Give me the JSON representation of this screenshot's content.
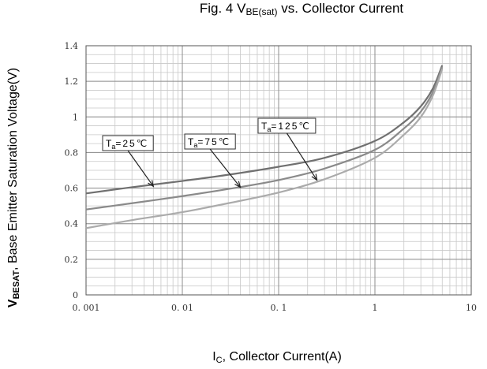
{
  "chart_data": {
    "type": "line",
    "title_main": "Fig. 4 V",
    "title_sub": "BE(sat)",
    "title_rest": " vs. Collector Current",
    "xlabel_main": "I",
    "xlabel_sub": "C",
    "xlabel_rest": ", Collector Current(A)",
    "ylabel_bold": "V",
    "ylabel_bold_sub": "BESAT",
    "ylabel_rest": ", Base Emitter Saturation Voltage(V)",
    "x_scale": "log",
    "xlim": [
      0.001,
      10
    ],
    "ylim": [
      0,
      1.4
    ],
    "x_ticks": [
      0.001,
      0.01,
      0.1,
      1,
      10
    ],
    "x_tick_labels": [
      "0. 001",
      "0. 01",
      "0. 1",
      "1",
      "10"
    ],
    "y_ticks": [
      0,
      0.2,
      0.4,
      0.6,
      0.8,
      1,
      1.2,
      1.4
    ],
    "y_tick_labels": [
      "0",
      "0.2",
      "0.4",
      "0.6",
      "0.8",
      "1",
      "1.2",
      "1.4"
    ],
    "grid": true,
    "series": [
      {
        "name": "Ta=25℃",
        "label_base": "T",
        "label_sub": "a",
        "label_rest": "=25℃",
        "color": "#707070",
        "x": [
          0.001,
          0.003,
          0.01,
          0.03,
          0.1,
          0.3,
          1,
          2,
          3,
          4,
          5
        ],
        "y": [
          0.57,
          0.605,
          0.64,
          0.675,
          0.72,
          0.77,
          0.865,
          0.97,
          1.06,
          1.16,
          1.29
        ]
      },
      {
        "name": "Ta=75℃",
        "label_base": "T",
        "label_sub": "a",
        "label_rest": "=75℃",
        "color": "#8a8a8a",
        "x": [
          0.001,
          0.003,
          0.01,
          0.03,
          0.1,
          0.3,
          1,
          2,
          3,
          4,
          5
        ],
        "y": [
          0.48,
          0.515,
          0.555,
          0.595,
          0.645,
          0.71,
          0.815,
          0.935,
          1.03,
          1.14,
          1.28
        ]
      },
      {
        "name": "Ta=125℃",
        "label_base": "T",
        "label_sub": "a",
        "label_rest": "=125℃",
        "color": "#ababab",
        "x": [
          0.001,
          0.003,
          0.01,
          0.03,
          0.1,
          0.3,
          1,
          2,
          3,
          4,
          5
        ],
        "y": [
          0.375,
          0.42,
          0.465,
          0.515,
          0.575,
          0.65,
          0.77,
          0.9,
          1.0,
          1.12,
          1.27
        ]
      }
    ],
    "annotations": [
      {
        "series": 0,
        "point_x": 0.005,
        "point_y": 0.61
      },
      {
        "series": 1,
        "point_x": 0.04,
        "point_y": 0.605
      },
      {
        "series": 2,
        "point_x": 0.25,
        "point_y": 0.645
      }
    ]
  }
}
